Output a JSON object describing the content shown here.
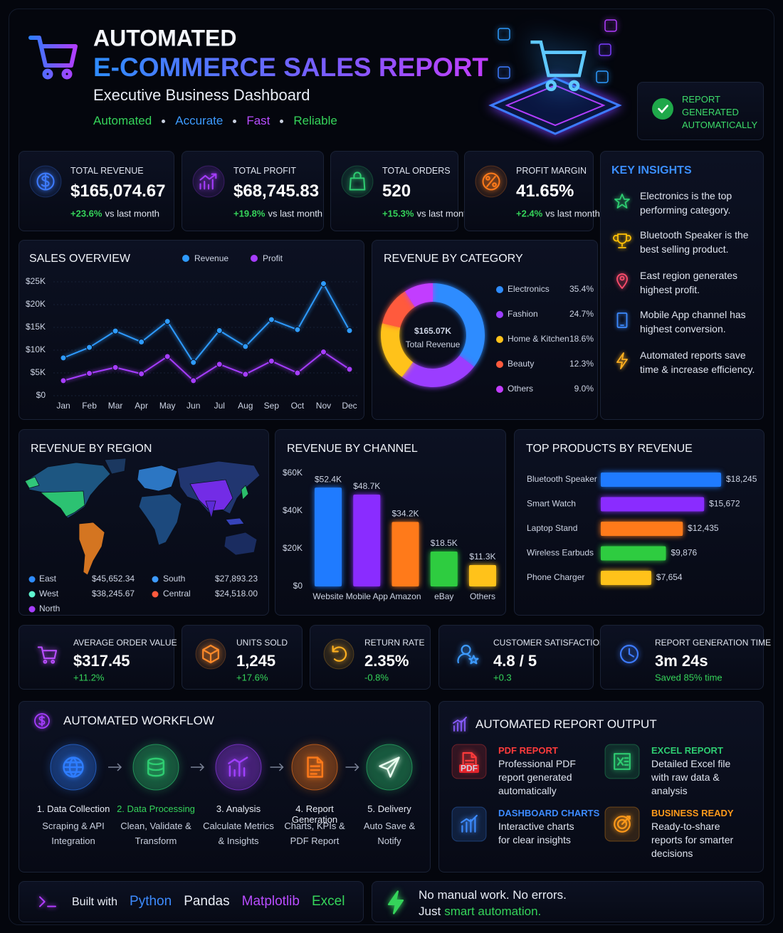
{
  "header": {
    "title": "AUTOMATED",
    "title_highlight": "E-COMMERCE SALES REPORT",
    "subtitle": "Executive Business Dashboard",
    "tags": [
      {
        "text": "Automated",
        "color": "#35d45a"
      },
      {
        "text": "Accurate",
        "color": "#3d9bff"
      },
      {
        "text": "Fast",
        "color": "#b84dff"
      },
      {
        "text": "Reliable",
        "color": "#35d45a"
      }
    ],
    "badge": "REPORT GENERATED AUTOMATICALLY"
  },
  "kpis": [
    {
      "label": "TOTAL REVENUE",
      "value": "$165,074.67",
      "change": "+23.6%",
      "note": "vs last month"
    },
    {
      "label": "TOTAL PROFIT",
      "value": "$68,745.83",
      "change": "+19.8%",
      "note": "vs last month"
    },
    {
      "label": "TOTAL ORDERS",
      "value": "520",
      "change": "+15.3%",
      "note": "vs last month"
    },
    {
      "label": "PROFIT MARGIN",
      "value": "41.65%",
      "change": "+2.4%",
      "note": "vs last month"
    }
  ],
  "chart_data": [
    {
      "type": "line",
      "title": "SALES OVERVIEW",
      "categories": [
        "Jan",
        "Feb",
        "Mar",
        "Apr",
        "May",
        "Jun",
        "Jul",
        "Aug",
        "Sep",
        "Oct",
        "Nov",
        "Dec"
      ],
      "series": [
        {
          "name": "Revenue",
          "color": "#2e9bff",
          "values": [
            8300,
            10600,
            14200,
            11800,
            16300,
            7300,
            14300,
            10800,
            16700,
            14500,
            24600,
            14300
          ]
        },
        {
          "name": "Profit",
          "color": "#a63dff",
          "values": [
            3300,
            4900,
            6200,
            4800,
            8600,
            3300,
            6900,
            4700,
            7600,
            5000,
            9600,
            5800
          ]
        }
      ],
      "ylim": [
        0,
        25000
      ],
      "yticks": [
        {
          "value": 0,
          "label": "$0"
        },
        {
          "value": 5000,
          "label": "$5K"
        },
        {
          "value": 10000,
          "label": "$10K"
        },
        {
          "value": 15000,
          "label": "$15K"
        },
        {
          "value": 20000,
          "label": "$20K"
        },
        {
          "value": 25000,
          "label": "$25K"
        }
      ],
      "grid": true
    },
    {
      "type": "donut",
      "title": "REVENUE BY CATEGORY",
      "center_label": "$165.07K",
      "center_subtitle": "Total Revenue",
      "categories": [
        "Electronics",
        "Fashion",
        "Home & Kitchen",
        "Beauty",
        "Others"
      ],
      "values": [
        35.4,
        24.7,
        18.6,
        12.3,
        9.0
      ],
      "value_labels": [
        "35.4%",
        "24.7%",
        "18.6%",
        "12.3%",
        "9.0%"
      ],
      "colors": [
        "#2e8cff",
        "#9b3dff",
        "#ffc21a",
        "#ff5a3d",
        "#c23dff"
      ]
    },
    {
      "type": "map",
      "title": "REVENUE BY REGION",
      "regions": [
        {
          "name": "East",
          "color": "#2e8cff",
          "revenue": "$45,652.34"
        },
        {
          "name": "West",
          "color": "#5ff5d0",
          "revenue": "$38,245.67"
        },
        {
          "name": "North",
          "color": "#a63dff"
        },
        {
          "name": "South",
          "color": "#3d9bff",
          "revenue": "$27,893.23"
        },
        {
          "name": "Central",
          "color": "#ff5a3d",
          "revenue": "$24,518.00"
        }
      ]
    },
    {
      "type": "bar",
      "title": "REVENUE BY CHANNEL",
      "categories": [
        "Website",
        "Mobile App",
        "Amazon",
        "eBay",
        "Others"
      ],
      "values": [
        52400,
        48700,
        34200,
        18500,
        11300
      ],
      "value_labels": [
        "$52.4K",
        "$48.7K",
        "$34.2K",
        "$18.5K",
        "$11.3K"
      ],
      "colors": [
        "#1f7bff",
        "#8a2cff",
        "#ff7a1a",
        "#2ecc40",
        "#ffc21a"
      ],
      "ylim": [
        0,
        60000
      ],
      "yticks": [
        {
          "value": 0,
          "label": "$0"
        },
        {
          "value": 20000,
          "label": "$20K"
        },
        {
          "value": 40000,
          "label": "$40K"
        },
        {
          "value": 60000,
          "label": "$60K"
        }
      ]
    },
    {
      "type": "barh",
      "title": "TOP PRODUCTS BY REVENUE",
      "categories": [
        "Bluetooth Speaker",
        "Smart Watch",
        "Laptop Stand",
        "Wireless Earbuds",
        "Phone Charger"
      ],
      "values": [
        18245,
        15672,
        12435,
        9876,
        7654
      ],
      "value_labels": [
        "$18,245",
        "$15,672",
        "$12,435",
        "$9,876",
        "$7,654"
      ],
      "colors": [
        "#1f7bff",
        "#8a2cff",
        "#ff7a1a",
        "#2ecc40",
        "#ffc21a"
      ]
    }
  ],
  "insights": {
    "title": "KEY INSIGHTS",
    "items": [
      "Electronics is the top performing category.",
      "Bluetooth Speaker is the best selling product.",
      "East region generates highest profit.",
      "Mobile App channel has highest conversion.",
      "Automated reports save time & increase efficiency."
    ]
  },
  "metrics": [
    {
      "label": "AVERAGE ORDER VALUE",
      "value": "$317.45",
      "change": "+11.2%"
    },
    {
      "label": "UNITS SOLD",
      "value": "1,245",
      "change": "+17.6%"
    },
    {
      "label": "RETURN RATE",
      "value": "2.35%",
      "change": "-0.8%"
    },
    {
      "label": "CUSTOMER SATISFACTION",
      "value": "4.8 / 5",
      "change": "+0.3"
    },
    {
      "label": "REPORT GENERATION TIME",
      "value": "3m 24s",
      "change": "Saved 85% time"
    }
  ],
  "workflow": {
    "title": "AUTOMATED WORKFLOW",
    "steps": [
      {
        "title": "1. Data Collection",
        "text": "Scraping & API Integration"
      },
      {
        "title": "2. Data Processing",
        "text": "Clean, Validate & Transform"
      },
      {
        "title": "3. Analysis",
        "text": "Calculate Metrics & Insights"
      },
      {
        "title": "4. Report Generation",
        "text": "Charts, KPIs & PDF Report"
      },
      {
        "title": "5. Delivery",
        "text": "Auto Save & Notify"
      }
    ]
  },
  "outputs": {
    "title": "AUTOMATED REPORT OUTPUT",
    "pdf_icon_text": "PDF",
    "items": [
      {
        "title": "PDF REPORT",
        "text": "Professional PDF report generated automatically"
      },
      {
        "title": "EXCEL REPORT",
        "text": "Detailed Excel file with raw data & analysis"
      },
      {
        "title": "DASHBOARD CHARTS",
        "text": "Interactive charts for clear insights"
      },
      {
        "title": "BUSINESS READY",
        "text": "Ready-to-share reports for smarter decisions"
      }
    ]
  },
  "footer": {
    "built_with": "Built with",
    "tools": [
      "Python",
      "Pandas",
      "Matplotlib",
      "Excel"
    ],
    "line1": "No manual work. No errors.",
    "line2": "Just",
    "line2_highlight": "smart automation."
  }
}
